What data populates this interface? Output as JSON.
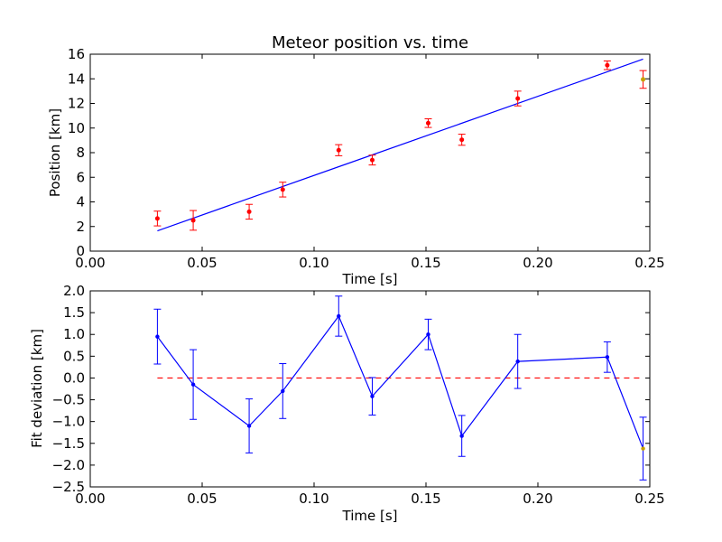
{
  "chart_data": [
    {
      "type": "scatter",
      "title": "Meteor position vs. time",
      "xlabel": "Time [s]",
      "ylabel": "Position [km]",
      "xlim": [
        0.0,
        0.25
      ],
      "ylim": [
        0,
        16
      ],
      "xticks": [
        "0.00",
        "0.05",
        "0.10",
        "0.15",
        "0.20",
        "0.25"
      ],
      "yticks": [
        "0",
        "2",
        "4",
        "6",
        "8",
        "10",
        "12",
        "14",
        "16"
      ],
      "grid": false,
      "colors": {
        "points": "#ff0000",
        "outlier": "#c8a000",
        "fit": "#0000ff"
      },
      "series": [
        {
          "role": "measurements",
          "x": [
            0.03,
            0.046,
            0.071,
            0.086,
            0.111,
            0.126,
            0.151,
            0.166,
            0.191,
            0.231
          ],
          "y": [
            2.65,
            2.5,
            3.2,
            5.0,
            8.2,
            7.4,
            10.4,
            9.05,
            12.4,
            15.1
          ],
          "yerr": [
            0.6,
            0.8,
            0.6,
            0.6,
            0.45,
            0.4,
            0.35,
            0.45,
            0.6,
            0.35
          ]
        },
        {
          "role": "outlier",
          "x": [
            0.247
          ],
          "y": [
            13.95
          ],
          "yerr": [
            0.72
          ]
        },
        {
          "role": "linear-fit",
          "x": [
            0.03,
            0.247
          ],
          "y": [
            1.65,
            15.6
          ]
        }
      ]
    },
    {
      "type": "line",
      "title": "",
      "xlabel": "Time [s]",
      "ylabel": "Fit deviation [km]",
      "xlim": [
        0.0,
        0.25
      ],
      "ylim": [
        -2.5,
        2.0
      ],
      "xticks": [
        "0.00",
        "0.05",
        "0.10",
        "0.15",
        "0.20",
        "0.25"
      ],
      "yticks": [
        "2.0",
        "1.5",
        "1.0",
        "0.5",
        "0.0",
        "−0.5",
        "−1.0",
        "−1.5",
        "−2.0",
        "−2.5"
      ],
      "grid": false,
      "colors": {
        "line": "#0000ff",
        "zero": "#ff0000",
        "outlier": "#c8a000"
      },
      "series": [
        {
          "role": "residuals",
          "x": [
            0.03,
            0.046,
            0.071,
            0.086,
            0.111,
            0.126,
            0.151,
            0.166,
            0.191,
            0.231,
            0.247
          ],
          "y": [
            0.95,
            -0.15,
            -1.1,
            -0.3,
            1.42,
            -0.42,
            1.0,
            -1.33,
            0.38,
            0.48,
            -1.62
          ],
          "yerr": [
            0.63,
            0.8,
            0.62,
            0.63,
            0.46,
            0.43,
            0.35,
            0.47,
            0.62,
            0.35,
            0.72
          ]
        },
        {
          "role": "zero-line",
          "x": [
            0.03,
            0.247
          ],
          "y": [
            0.0,
            0.0
          ]
        }
      ]
    }
  ]
}
